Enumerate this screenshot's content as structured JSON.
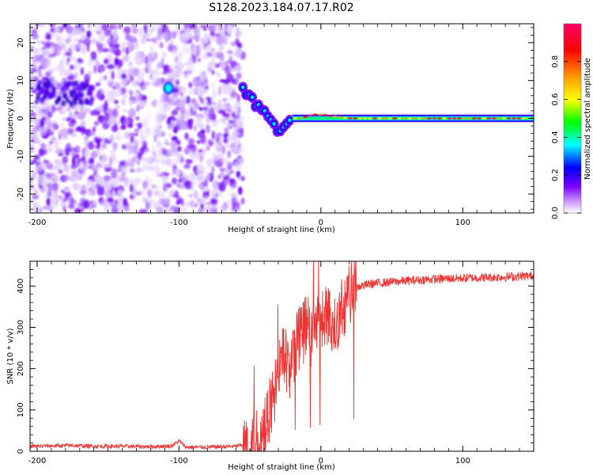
{
  "figure": {
    "title": "S128.2023.184.07.17.R02"
  },
  "chart_data": [
    {
      "type": "heatmap",
      "xlabel": "Height of straight line (km)",
      "ylabel": "Frequency (Hz)",
      "xlim": [
        -205,
        150
      ],
      "ylim": [
        -25,
        25
      ],
      "xticks": [
        -200,
        -100,
        0,
        100
      ],
      "yticks": [
        -20,
        -10,
        0,
        10,
        20
      ],
      "grid": false,
      "description_of_pattern": {
        "noise_region_x": [
          -205,
          -55
        ],
        "transition_x": [
          -55,
          -20
        ],
        "tone_x": [
          -20,
          150
        ],
        "tone_frequency_hz": 0,
        "noise_blob_x": [
          -110,
          -105
        ],
        "noise_blob_y_hz": 8
      },
      "ridge": {
        "x": [
          -55,
          -50,
          -45,
          -40,
          -35,
          -30,
          -25,
          -20,
          -15,
          -10,
          -5,
          0,
          10,
          20,
          40,
          60,
          80,
          100,
          150
        ],
        "y": [
          8,
          6,
          3,
          2,
          -1,
          -3,
          -1,
          0,
          0,
          0.5,
          1,
          1,
          0.5,
          0,
          0,
          0,
          0,
          0,
          0
        ]
      },
      "colorbar": {
        "label": "Normalized spectral amplitude",
        "range": [
          0,
          1
        ],
        "ticks": [
          0.0,
          0.2,
          0.4,
          0.6,
          0.8
        ],
        "tick_labels": [
          "0.0",
          "0.2",
          "0.4",
          "0.6",
          "0.8"
        ],
        "colors": [
          "#ffffff",
          "#7a00ff",
          "#0000ff",
          "#00ffff",
          "#00ff00",
          "#ffff00",
          "#ff7f00",
          "#ff0000",
          "#ff007f"
        ]
      }
    },
    {
      "type": "line",
      "xlabel": "Height of straight line (km)",
      "ylabel": "SNR (10 * v/v)",
      "xlim": [
        -205,
        150
      ],
      "ylim": [
        0,
        460
      ],
      "xticks": [
        -200,
        -100,
        0,
        100
      ],
      "yticks": [
        0,
        100,
        200,
        300,
        400
      ],
      "line_color": "#ee3333",
      "series": [
        {
          "x": [
            -205,
            -190,
            -175,
            -160,
            -140,
            -120,
            -105,
            -100,
            -95,
            -80,
            -60,
            -50,
            -42,
            -38,
            -34,
            -30,
            -26,
            -22,
            -18,
            -14,
            -10,
            -6,
            -2,
            2,
            6,
            10,
            14,
            18,
            22,
            28,
            35,
            50,
            70,
            90,
            110,
            130,
            150
          ],
          "y": [
            12,
            13,
            14,
            12,
            12,
            11,
            13,
            25,
            10,
            10,
            12,
            20,
            40,
            80,
            120,
            180,
            240,
            200,
            260,
            280,
            300,
            280,
            310,
            330,
            320,
            300,
            340,
            370,
            390,
            400,
            405,
            410,
            415,
            418,
            420,
            422,
            425
          ]
        }
      ]
    }
  ]
}
